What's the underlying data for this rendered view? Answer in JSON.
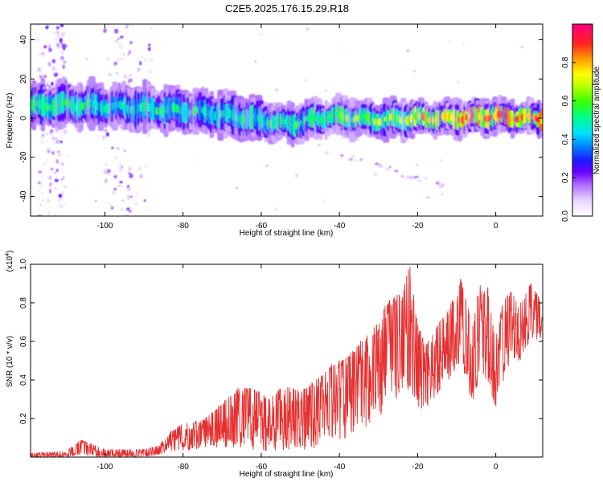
{
  "title": "C2E5.2025.176.15.29.R18",
  "colors": {
    "snr_line": "#e53030",
    "colormap": [
      "#ffffff",
      "#e9d6ff",
      "#b070ff",
      "#6a00ff",
      "#1a1aff",
      "#00c8ff",
      "#00ff80",
      "#40ff00",
      "#ffff00",
      "#ff9900",
      "#ff2020",
      "#ff0080"
    ]
  },
  "chart_data": [
    {
      "type": "heatmap",
      "title": "C2E5.2025.176.15.29.R18",
      "xlabel": "Height of straight line (km)",
      "ylabel": "Frequency (Hz)",
      "xlim": [
        -119,
        12
      ],
      "ylim": [
        -50,
        48
      ],
      "xticks": [
        -100,
        -80,
        -60,
        -40,
        -20,
        0
      ],
      "xtick_labels": [
        "-100",
        "-80",
        "-60",
        "-40",
        "-20",
        "0"
      ],
      "yticks": [
        -40,
        -20,
        0,
        20,
        40
      ],
      "ytick_labels": [
        "-40",
        "-20",
        "0",
        "20",
        "40"
      ],
      "colorbar": {
        "label": "Normalized spectral amplitude",
        "range": [
          0,
          1
        ],
        "ticks": [
          0.0,
          0.2,
          0.4,
          0.6,
          0.8
        ],
        "tick_labels": [
          "0.0",
          "0.2",
          "0.4",
          "0.6",
          "0.8"
        ]
      },
      "ridge": {
        "x": [
          -118,
          -110,
          -100,
          -90,
          -80,
          -70,
          -60,
          -52,
          -45,
          -40,
          -30,
          -20,
          -10,
          0,
          10
        ],
        "center_freq": [
          6,
          7,
          6,
          5,
          4,
          2,
          -1,
          -3,
          0,
          1,
          -1,
          0,
          0,
          1,
          0
        ],
        "peak_amplitude": [
          0.6,
          0.6,
          0.5,
          0.55,
          0.55,
          0.5,
          0.55,
          0.6,
          0.6,
          0.65,
          0.7,
          0.8,
          0.9,
          0.92,
          0.92
        ]
      }
    },
    {
      "type": "line",
      "xlabel": "Height of straight line (km)",
      "ylabel": "SNR (10 * v/v)",
      "y_multiplier": "(x10^4)",
      "xlim": [
        -119,
        12
      ],
      "ylim": [
        0,
        1.0
      ],
      "xticks": [
        -100,
        -80,
        -60,
        -40,
        -20,
        0
      ],
      "xtick_labels": [
        "-100",
        "-80",
        "-60",
        "-40",
        "-20",
        "0"
      ],
      "yticks": [
        0.2,
        0.4,
        0.6,
        0.8,
        1.0
      ],
      "ytick_labels": [
        "0.2",
        "0.4",
        "0.6",
        "0.8",
        "1.0"
      ],
      "series": [
        {
          "x": [
            -119,
            -110,
            -106,
            -100,
            -90,
            -86,
            -84,
            -80,
            -75,
            -70,
            -66,
            -62,
            -58,
            -54,
            -50,
            -46,
            -42,
            -38,
            -34,
            -30,
            -28,
            -24,
            -22,
            -20,
            -18,
            -16,
            -12,
            -9,
            -6,
            -4,
            -2,
            0,
            2,
            4,
            6,
            9,
            12
          ],
          "y": [
            0.02,
            0.03,
            0.08,
            0.03,
            0.03,
            0.05,
            0.1,
            0.14,
            0.16,
            0.22,
            0.28,
            0.32,
            0.26,
            0.34,
            0.3,
            0.36,
            0.42,
            0.45,
            0.48,
            0.55,
            0.65,
            0.72,
            0.95,
            0.6,
            0.48,
            0.55,
            0.66,
            0.78,
            0.55,
            0.72,
            0.75,
            0.5,
            0.68,
            0.78,
            0.65,
            0.85,
            0.72
          ],
          "lower": [
            0.0,
            0.0,
            0.01,
            0.0,
            0.0,
            0.01,
            0.02,
            0.03,
            0.04,
            0.05,
            0.05,
            0.04,
            0.02,
            0.04,
            0.03,
            0.05,
            0.08,
            0.1,
            0.14,
            0.2,
            0.26,
            0.33,
            0.32,
            0.26,
            0.23,
            0.3,
            0.4,
            0.5,
            0.27,
            0.42,
            0.38,
            0.25,
            0.4,
            0.52,
            0.48,
            0.6,
            0.62
          ],
          "upper": [
            0.02,
            0.03,
            0.09,
            0.04,
            0.04,
            0.06,
            0.12,
            0.18,
            0.19,
            0.28,
            0.36,
            0.36,
            0.3,
            0.38,
            0.34,
            0.4,
            0.48,
            0.52,
            0.62,
            0.7,
            0.82,
            0.85,
            1.0,
            0.7,
            0.58,
            0.66,
            0.77,
            0.95,
            0.72,
            0.9,
            0.88,
            0.65,
            0.82,
            0.86,
            0.79,
            0.92,
            0.78
          ]
        }
      ]
    }
  ]
}
